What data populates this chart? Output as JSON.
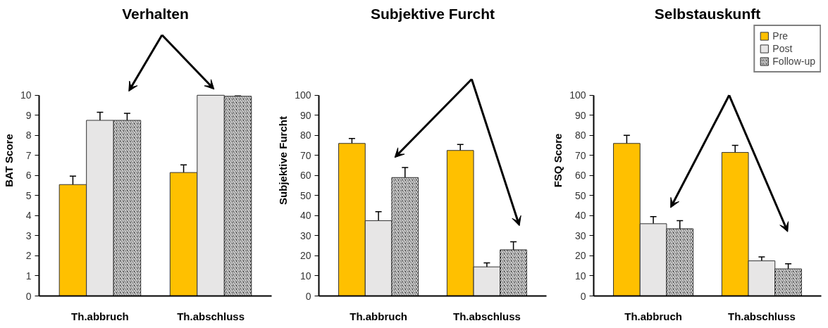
{
  "chart_data": [
    {
      "type": "bar",
      "title": "Verhalten",
      "ylabel": "BAT Score",
      "categories": [
        "Th.abbruch",
        "Th.abschluss"
      ],
      "ylim": [
        0,
        10
      ],
      "yticks": [
        0,
        1,
        2,
        3,
        4,
        5,
        6,
        7,
        8,
        9,
        10
      ],
      "grid": false,
      "legend": false,
      "series": [
        {
          "color": "#ffc000",
          "values": [
            5.55,
            6.15
          ],
          "errors": [
            0.42,
            0.38
          ]
        },
        {
          "color": "#e7e6e6",
          "values": [
            8.75,
            10.0
          ],
          "errors": [
            0.4,
            null
          ]
        },
        {
          "color": "#000000",
          "values": [
            8.75,
            9.95
          ],
          "errors": [
            0.35,
            0.02
          ]
        }
      ]
    },
    {
      "type": "bar",
      "title": "Subjektive Furcht",
      "ylabel": "Subjektive Furcht",
      "categories": [
        "Th.abbruch",
        "Th.abschluss"
      ],
      "ylim": [
        0,
        100
      ],
      "yticks": [
        0,
        10,
        20,
        30,
        40,
        50,
        60,
        70,
        80,
        90,
        100
      ],
      "grid": false,
      "legend": false,
      "series": [
        {
          "color": "#ffc000",
          "values": [
            76,
            72.5
          ],
          "errors": [
            2.5,
            3
          ]
        },
        {
          "color": "#e7e6e6",
          "values": [
            37.5,
            14.5
          ],
          "errors": [
            4.5,
            2
          ]
        },
        {
          "color": "#000000",
          "values": [
            59,
            23
          ],
          "errors": [
            5,
            4
          ]
        }
      ]
    },
    {
      "type": "bar",
      "title": "Selbstauskunft",
      "ylabel": "FSQ Score",
      "categories": [
        "Th.abbruch",
        "Th.abschluss"
      ],
      "ylim": [
        0,
        100
      ],
      "yticks": [
        0,
        10,
        20,
        30,
        40,
        50,
        60,
        70,
        80,
        90,
        100
      ],
      "grid": false,
      "legend": "top right",
      "series": [
        {
          "name": "Pre",
          "color": "#ffc000",
          "values": [
            76,
            71.5
          ],
          "errors": [
            4,
            3.5
          ]
        },
        {
          "name": "Post",
          "color": "#e7e6e6",
          "values": [
            36,
            17.5
          ],
          "errors": [
            3.5,
            2
          ]
        },
        {
          "name": "Follow-up",
          "color": "#000000",
          "values": [
            33.5,
            13.5
          ],
          "errors": [
            4,
            2.5
          ]
        }
      ]
    }
  ]
}
